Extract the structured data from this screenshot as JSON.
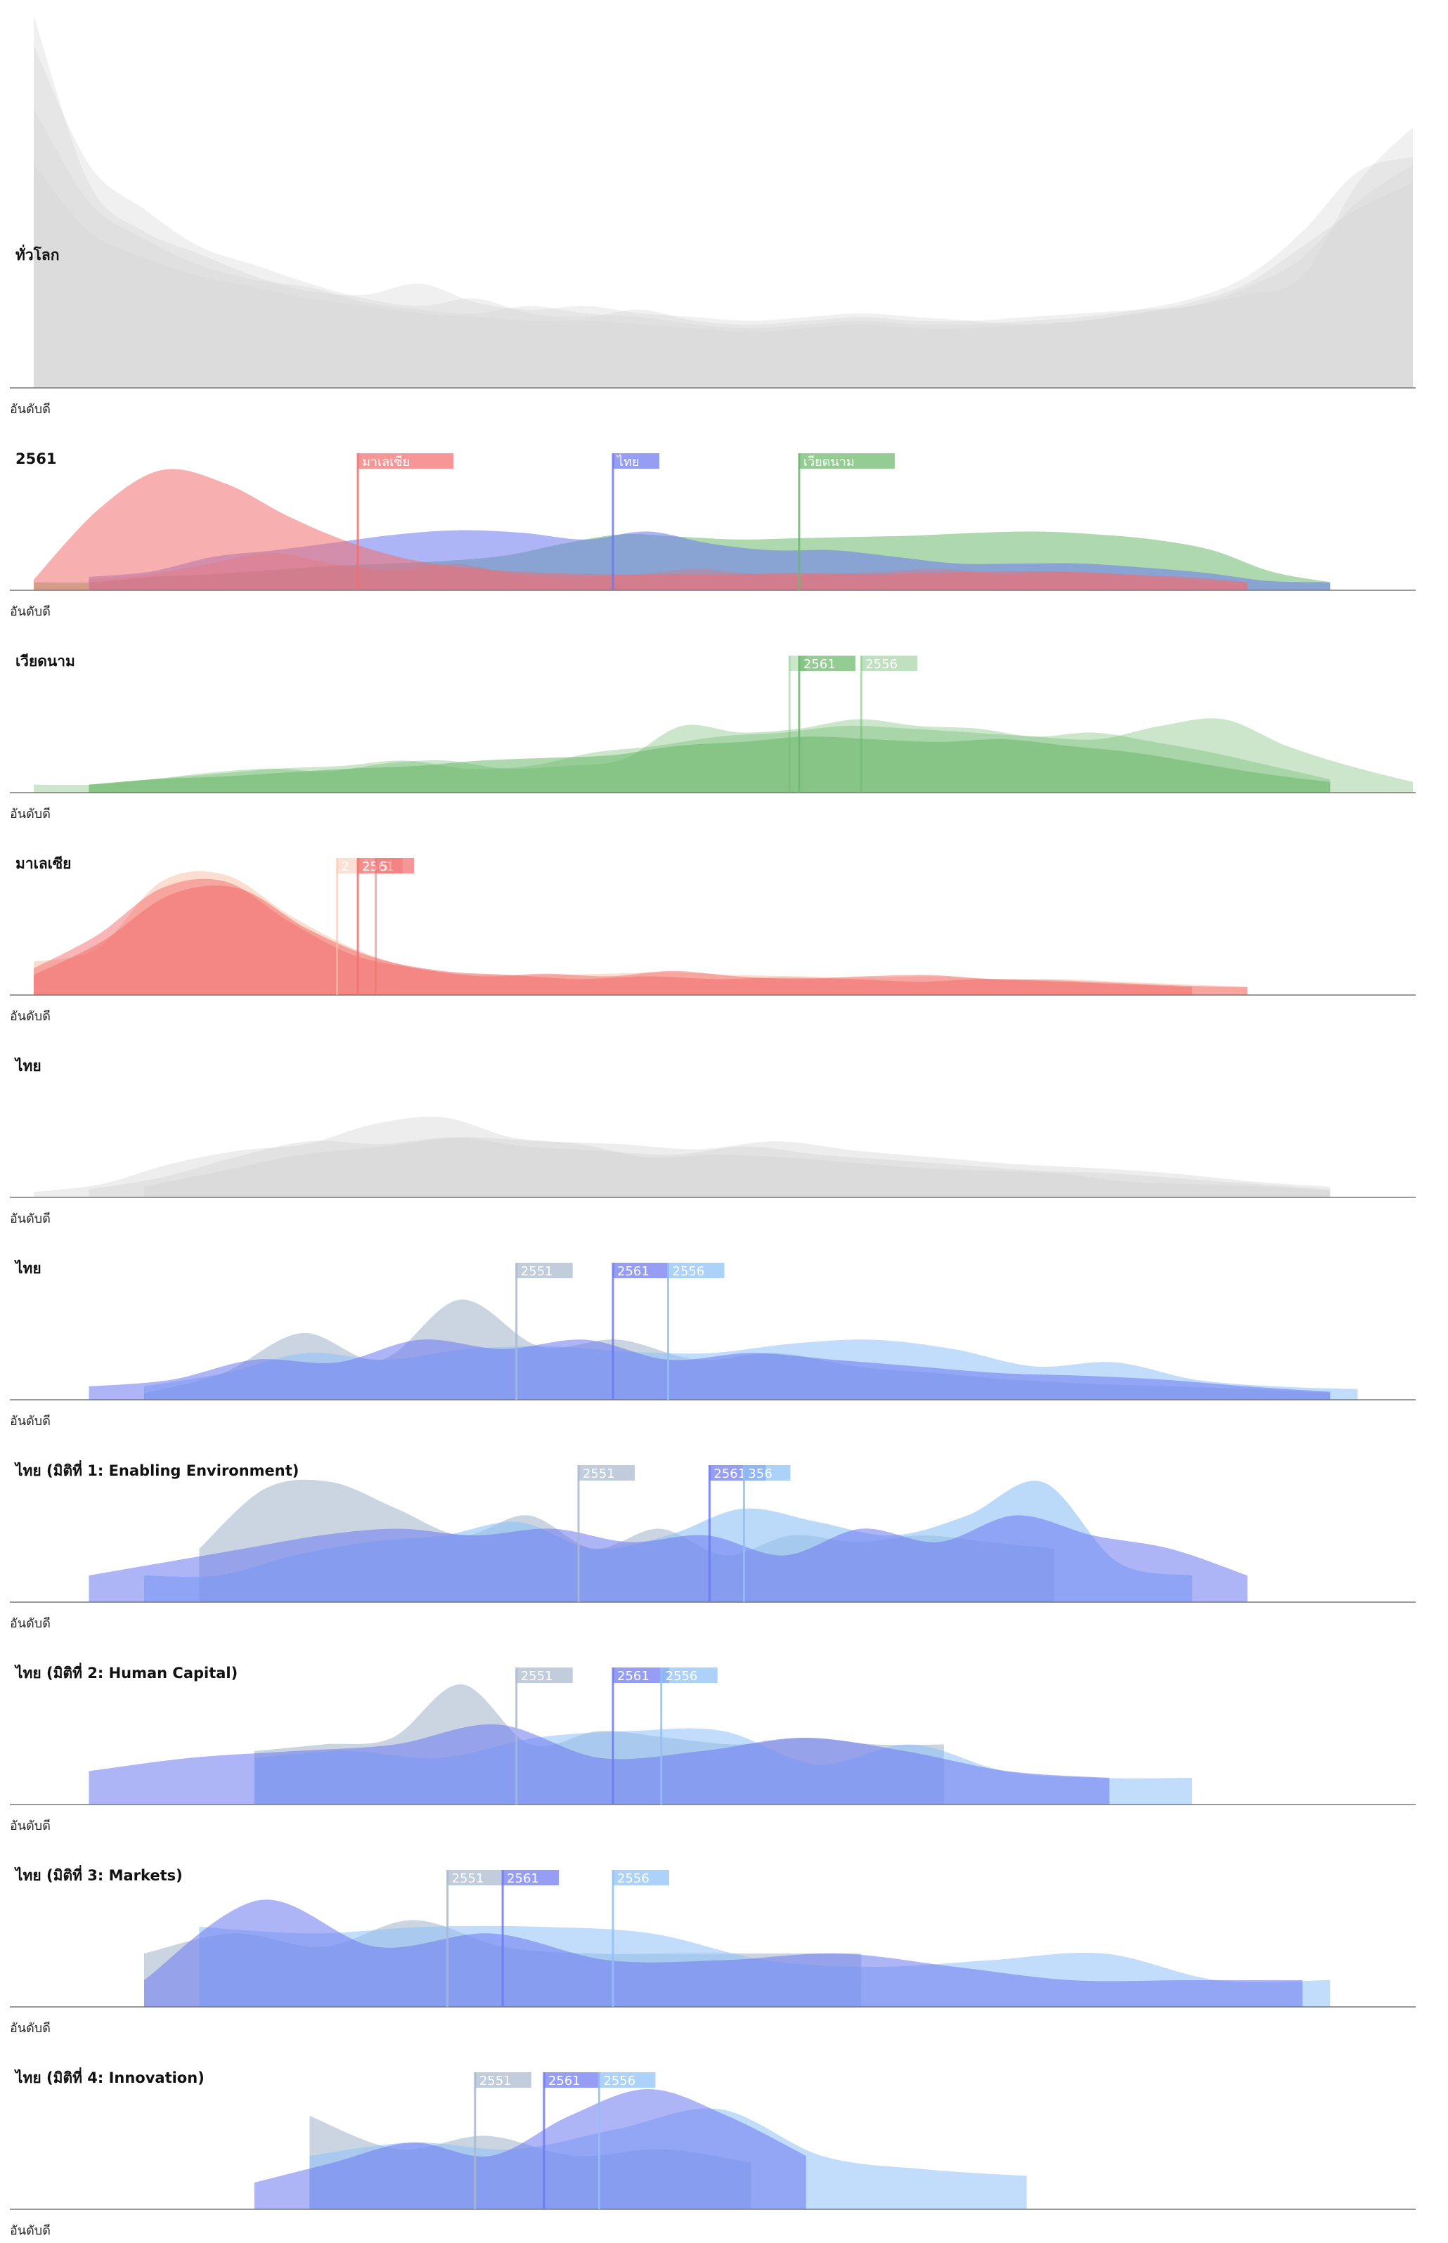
{
  "palette": {
    "gray": "#d3d3d3",
    "red": "#f26e6e",
    "green": "#6bb86b",
    "blue": "#6c78f0",
    "lightblue": "#8ec1f7",
    "slate": "#a9b9cf",
    "peach": "#f7c2a8",
    "axis": "#777777"
  },
  "chart_data": [
    {
      "type": "area",
      "title": "ทั่วโลก",
      "x_axis_label": "อันดับดี",
      "scale": "log",
      "series": [
        {
          "color": "gray",
          "opacity": 0.35,
          "range": [
            0.0,
            1.0
          ],
          "values": [
            1.0,
            0.55,
            0.42,
            0.36,
            0.3,
            0.26,
            0.25,
            0.28,
            0.23,
            0.21,
            0.22,
            0.2,
            0.19,
            0.18,
            0.19,
            0.2,
            0.19,
            0.18,
            0.17,
            0.18,
            0.2,
            0.22,
            0.25,
            0.3,
            0.55,
            0.7
          ]
        },
        {
          "color": "gray",
          "opacity": 0.35,
          "range": [
            0.0,
            1.0
          ],
          "values": [
            0.92,
            0.6,
            0.48,
            0.38,
            0.33,
            0.28,
            0.24,
            0.22,
            0.24,
            0.2,
            0.19,
            0.21,
            0.18,
            0.17,
            0.18,
            0.19,
            0.18,
            0.18,
            0.19,
            0.2,
            0.21,
            0.22,
            0.27,
            0.35,
            0.5,
            0.6
          ]
        },
        {
          "color": "gray",
          "opacity": 0.35,
          "range": [
            0.0,
            1.0
          ],
          "values": [
            0.75,
            0.5,
            0.4,
            0.33,
            0.29,
            0.27,
            0.23,
            0.21,
            0.2,
            0.22,
            0.2,
            0.19,
            0.17,
            0.16,
            0.17,
            0.18,
            0.17,
            0.17,
            0.18,
            0.19,
            0.21,
            0.24,
            0.3,
            0.42,
            0.58,
            0.62
          ]
        },
        {
          "color": "gray",
          "opacity": 0.35,
          "range": [
            0.0,
            1.0
          ],
          "values": [
            0.6,
            0.42,
            0.35,
            0.3,
            0.27,
            0.24,
            0.22,
            0.2,
            0.19,
            0.18,
            0.18,
            0.17,
            0.16,
            0.15,
            0.16,
            0.17,
            0.16,
            0.16,
            0.17,
            0.18,
            0.2,
            0.23,
            0.28,
            0.38,
            0.48,
            0.55
          ]
        }
      ],
      "flags": []
    },
    {
      "type": "area",
      "title": "2561",
      "x_axis_label": "อันดับดี",
      "series": [
        {
          "color": "green",
          "opacity": 0.55,
          "range": [
            0.0,
            0.94
          ],
          "values": [
            0.06,
            0.06,
            0.1,
            0.12,
            0.15,
            0.18,
            0.2,
            0.22,
            0.26,
            0.35,
            0.42,
            0.4,
            0.38,
            0.39,
            0.4,
            0.41,
            0.43,
            0.44,
            0.42,
            0.38,
            0.3,
            0.14,
            0.06
          ]
        },
        {
          "color": "blue",
          "opacity": 0.55,
          "range": [
            0.04,
            0.94
          ],
          "values": [
            0.1,
            0.14,
            0.25,
            0.3,
            0.36,
            0.42,
            0.45,
            0.43,
            0.38,
            0.44,
            0.35,
            0.3,
            0.3,
            0.25,
            0.2,
            0.2,
            0.2,
            0.17,
            0.13,
            0.07,
            0.06
          ]
        },
        {
          "color": "red",
          "opacity": 0.55,
          "range": [
            0.0,
            0.88
          ],
          "values": [
            0.08,
            0.6,
            0.9,
            0.8,
            0.55,
            0.35,
            0.22,
            0.16,
            0.13,
            0.12,
            0.12,
            0.12,
            0.13,
            0.12,
            0.13,
            0.14,
            0.14,
            0.12,
            0.1,
            0.06
          ]
        },
        {
          "color": "red",
          "opacity": 0.3,
          "range": [
            0.04,
            0.88
          ],
          "values": [
            0.08,
            0.12,
            0.2,
            0.28,
            0.2,
            0.15,
            0.2,
            0.12,
            0.1,
            0.12,
            0.16,
            0.12,
            0.12,
            0.14,
            0.16,
            0.12,
            0.14,
            0.12,
            0.08,
            0.06
          ]
        }
      ],
      "flags": [
        {
          "label": "มาเลเซีย",
          "x": 0.235,
          "color": "red"
        },
        {
          "label": "ไทย",
          "x": 0.42,
          "color": "blue"
        },
        {
          "label": "เวียดนาม",
          "x": 0.555,
          "color": "green"
        }
      ]
    },
    {
      "type": "area",
      "title": "เวียดนาม",
      "x_axis_label": "อันดับดี",
      "series": [
        {
          "color": "green",
          "opacity": 0.35,
          "range": [
            0.0,
            0.94
          ],
          "values": [
            0.06,
            0.06,
            0.1,
            0.15,
            0.18,
            0.16,
            0.22,
            0.24,
            0.18,
            0.2,
            0.25,
            0.5,
            0.45,
            0.48,
            0.55,
            0.5,
            0.48,
            0.42,
            0.45,
            0.38,
            0.3,
            0.2,
            0.1
          ]
        },
        {
          "color": "green",
          "opacity": 0.35,
          "range": [
            0.04,
            1.0
          ],
          "values": [
            0.06,
            0.1,
            0.14,
            0.18,
            0.2,
            0.24,
            0.18,
            0.2,
            0.3,
            0.35,
            0.42,
            0.45,
            0.5,
            0.48,
            0.45,
            0.42,
            0.4,
            0.5,
            0.55,
            0.35,
            0.2,
            0.08
          ]
        },
        {
          "color": "green",
          "opacity": 0.55,
          "range": [
            0.04,
            0.94
          ],
          "values": [
            0.06,
            0.1,
            0.12,
            0.15,
            0.18,
            0.2,
            0.24,
            0.26,
            0.28,
            0.35,
            0.38,
            0.42,
            0.4,
            0.38,
            0.4,
            0.35,
            0.3,
            0.22,
            0.14,
            0.08
          ]
        }
      ],
      "flags": [
        {
          "label": "",
          "x": 0.548,
          "color": "green",
          "alpha": 0.4
        },
        {
          "label": "2561",
          "x": 0.555,
          "color": "green"
        },
        {
          "label": "2556",
          "x": 0.6,
          "color": "green",
          "alpha": 0.5
        }
      ]
    },
    {
      "type": "area",
      "title": "มาเลเซีย",
      "x_axis_label": "อันดับดี",
      "series": [
        {
          "color": "peach",
          "opacity": 0.55,
          "range": [
            0.0,
            0.88
          ],
          "values": [
            0.25,
            0.35,
            0.85,
            0.9,
            0.6,
            0.35,
            0.2,
            0.15,
            0.15,
            0.16,
            0.17,
            0.15,
            0.14,
            0.13,
            0.14,
            0.12,
            0.12,
            0.1,
            0.08,
            0.06
          ]
        },
        {
          "color": "red",
          "opacity": 0.5,
          "range": [
            0.0,
            0.88
          ],
          "values": [
            0.2,
            0.45,
            0.8,
            0.85,
            0.55,
            0.3,
            0.2,
            0.14,
            0.16,
            0.14,
            0.18,
            0.14,
            0.12,
            0.14,
            0.15,
            0.12,
            0.11,
            0.09,
            0.07,
            0.06
          ]
        },
        {
          "color": "red",
          "opacity": 0.55,
          "range": [
            0.0,
            0.84
          ],
          "values": [
            0.15,
            0.4,
            0.75,
            0.8,
            0.5,
            0.28,
            0.18,
            0.15,
            0.12,
            0.14,
            0.12,
            0.13,
            0.12,
            0.1,
            0.12,
            0.1,
            0.08,
            0.06
          ]
        }
      ],
      "flags": [
        {
          "label": "2",
          "x": 0.22,
          "color": "peach",
          "alpha": 0.6
        },
        {
          "label": "2561",
          "x": 0.235,
          "color": "red"
        },
        {
          "label": "5",
          "x": 0.248,
          "color": "red",
          "alpha": 0.55
        }
      ]
    },
    {
      "type": "area",
      "title": "ไทย",
      "x_axis_label": "อันดับดี",
      "series": [
        {
          "color": "gray",
          "opacity": 0.4,
          "range": [
            0.0,
            0.94
          ],
          "values": [
            0.04,
            0.1,
            0.25,
            0.35,
            0.4,
            0.55,
            0.6,
            0.45,
            0.4,
            0.3,
            0.32,
            0.3,
            0.26,
            0.22,
            0.2,
            0.18,
            0.12,
            0.1,
            0.08,
            0.05
          ]
        },
        {
          "color": "gray",
          "opacity": 0.4,
          "range": [
            0.04,
            0.94
          ],
          "values": [
            0.06,
            0.15,
            0.3,
            0.42,
            0.4,
            0.45,
            0.38,
            0.35,
            0.32,
            0.38,
            0.32,
            0.28,
            0.24,
            0.2,
            0.18,
            0.14,
            0.1,
            0.06
          ]
        },
        {
          "color": "gray",
          "opacity": 0.4,
          "range": [
            0.08,
            0.94
          ],
          "values": [
            0.08,
            0.2,
            0.32,
            0.38,
            0.45,
            0.42,
            0.4,
            0.36,
            0.42,
            0.35,
            0.3,
            0.25,
            0.22,
            0.18,
            0.12,
            0.08
          ]
        }
      ],
      "flags": []
    },
    {
      "type": "area",
      "title": "ไทย",
      "x_axis_label": "อันดับดี",
      "series": [
        {
          "color": "slate",
          "opacity": 0.6,
          "range": [
            0.08,
            0.94
          ],
          "values": [
            0.05,
            0.2,
            0.5,
            0.3,
            0.75,
            0.4,
            0.45,
            0.3,
            0.35,
            0.25,
            0.2,
            0.15,
            0.12,
            0.1,
            0.08,
            0.05
          ]
        },
        {
          "color": "lightblue",
          "opacity": 0.55,
          "range": [
            0.08,
            0.96
          ],
          "values": [
            0.1,
            0.2,
            0.35,
            0.3,
            0.38,
            0.4,
            0.36,
            0.35,
            0.42,
            0.45,
            0.38,
            0.25,
            0.28,
            0.15,
            0.1,
            0.08
          ]
        },
        {
          "color": "blue",
          "opacity": 0.55,
          "range": [
            0.04,
            0.94
          ],
          "values": [
            0.1,
            0.15,
            0.3,
            0.28,
            0.45,
            0.38,
            0.45,
            0.3,
            0.35,
            0.3,
            0.25,
            0.2,
            0.18,
            0.15,
            0.1,
            0.06
          ]
        }
      ],
      "flags": [
        {
          "label": "2551",
          "x": 0.35,
          "color": "slate"
        },
        {
          "label": "2561",
          "x": 0.42,
          "color": "blue"
        },
        {
          "label": "2556",
          "x": 0.46,
          "color": "lightblue"
        }
      ]
    },
    {
      "type": "area",
      "title": "ไทย (มิติที่ 1: Enabling Environment)",
      "x_axis_label": "อันดับดี",
      "series": [
        {
          "color": "slate",
          "opacity": 0.6,
          "range": [
            0.12,
            0.74
          ],
          "values": [
            0.4,
            0.85,
            0.9,
            0.7,
            0.5,
            0.65,
            0.4,
            0.55,
            0.35,
            0.5,
            0.45,
            0.5,
            0.45,
            0.4
          ]
        },
        {
          "color": "lightblue",
          "opacity": 0.6,
          "range": [
            0.08,
            0.84
          ],
          "values": [
            0.2,
            0.2,
            0.35,
            0.45,
            0.5,
            0.6,
            0.4,
            0.5,
            0.7,
            0.6,
            0.5,
            0.65,
            0.9,
            0.3,
            0.2
          ]
        },
        {
          "color": "blue",
          "opacity": 0.55,
          "range": [
            0.04,
            0.88
          ],
          "values": [
            0.2,
            0.3,
            0.4,
            0.5,
            0.55,
            0.5,
            0.55,
            0.45,
            0.5,
            0.35,
            0.55,
            0.45,
            0.65,
            0.5,
            0.4,
            0.2
          ]
        }
      ],
      "flags": [
        {
          "label": "2551",
          "x": 0.395,
          "color": "slate"
        },
        {
          "label": "2561",
          "x": 0.49,
          "color": "blue"
        },
        {
          "label": "356",
          "x": 0.515,
          "color": "lightblue"
        }
      ]
    },
    {
      "type": "area",
      "title": "ไทย (มิติที่ 2: Human Capital)",
      "x_axis_label": "อันดับดี",
      "series": [
        {
          "color": "slate",
          "opacity": 0.6,
          "range": [
            0.16,
            0.66
          ],
          "values": [
            0.4,
            0.45,
            0.5,
            0.9,
            0.45,
            0.55,
            0.5,
            0.45,
            0.5,
            0.45,
            0.45
          ]
        },
        {
          "color": "lightblue",
          "opacity": 0.55,
          "range": [
            0.16,
            0.84
          ],
          "values": [
            0.35,
            0.4,
            0.35,
            0.5,
            0.55,
            0.55,
            0.3,
            0.45,
            0.25,
            0.2,
            0.2
          ]
        },
        {
          "color": "blue",
          "opacity": 0.55,
          "range": [
            0.04,
            0.78
          ],
          "values": [
            0.25,
            0.35,
            0.4,
            0.45,
            0.6,
            0.35,
            0.4,
            0.5,
            0.4,
            0.25,
            0.2
          ]
        }
      ],
      "flags": [
        {
          "label": "2551",
          "x": 0.35,
          "color": "slate"
        },
        {
          "label": "2561",
          "x": 0.42,
          "color": "blue"
        },
        {
          "label": "2556",
          "x": 0.455,
          "color": "lightblue"
        }
      ]
    },
    {
      "type": "area",
      "title": "ไทย (มิติที่ 3: Markets)",
      "x_axis_label": "อันดับดี",
      "series": [
        {
          "color": "slate",
          "opacity": 0.6,
          "range": [
            0.08,
            0.6
          ],
          "values": [
            0.4,
            0.55,
            0.45,
            0.65,
            0.45,
            0.4,
            0.4,
            0.4,
            0.4
          ]
        },
        {
          "color": "lightblue",
          "opacity": 0.55,
          "range": [
            0.12,
            0.94
          ],
          "values": [
            0.6,
            0.55,
            0.6,
            0.6,
            0.55,
            0.35,
            0.3,
            0.35,
            0.4,
            0.2,
            0.2
          ]
        },
        {
          "color": "blue",
          "opacity": 0.55,
          "range": [
            0.08,
            0.92
          ],
          "values": [
            0.2,
            0.8,
            0.45,
            0.55,
            0.35,
            0.35,
            0.4,
            0.3,
            0.2,
            0.2,
            0.2
          ]
        }
      ],
      "flags": [
        {
          "label": "2551",
          "x": 0.3,
          "color": "slate"
        },
        {
          "label": "2561",
          "x": 0.34,
          "color": "blue"
        },
        {
          "label": "2556",
          "x": 0.42,
          "color": "lightblue"
        }
      ]
    },
    {
      "type": "area",
      "title": "ไทย (มิติที่ 4: Innovation)",
      "x_axis_label": "อันดับดี",
      "series": [
        {
          "color": "slate",
          "opacity": 0.6,
          "range": [
            0.2,
            0.52
          ],
          "values": [
            0.7,
            0.45,
            0.55,
            0.4,
            0.45,
            0.35
          ]
        },
        {
          "color": "lightblue",
          "opacity": 0.55,
          "range": [
            0.2,
            0.72
          ],
          "values": [
            0.4,
            0.5,
            0.45,
            0.6,
            0.75,
            0.4,
            0.3,
            0.25
          ]
        },
        {
          "color": "blue",
          "opacity": 0.55,
          "range": [
            0.16,
            0.56
          ],
          "values": [
            0.2,
            0.35,
            0.5,
            0.4,
            0.7,
            0.9,
            0.7,
            0.4
          ]
        }
      ],
      "flags": [
        {
          "label": "2551",
          "x": 0.32,
          "color": "slate"
        },
        {
          "label": "2561",
          "x": 0.37,
          "color": "blue"
        },
        {
          "label": "2556",
          "x": 0.41,
          "color": "lightblue"
        }
      ]
    }
  ]
}
